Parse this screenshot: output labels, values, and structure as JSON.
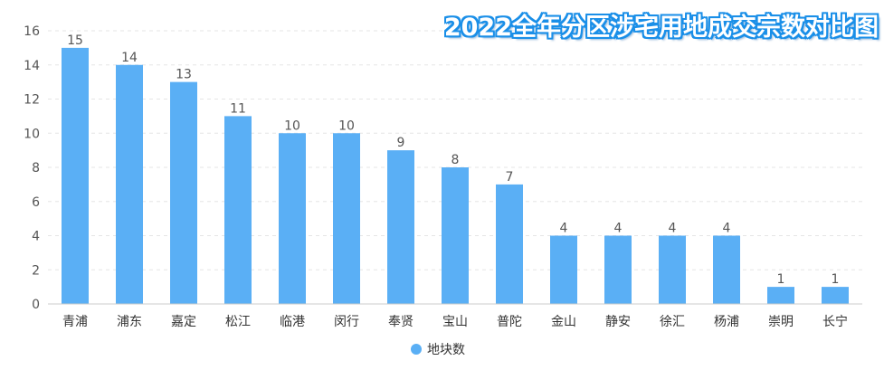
{
  "chart_data": {
    "type": "bar",
    "title": "2022全年分区涉宅用地成交宗数对比图",
    "categories": [
      "青浦",
      "浦东",
      "嘉定",
      "松江",
      "临港",
      "闵行",
      "奉贤",
      "宝山",
      "普陀",
      "金山",
      "静安",
      "徐汇",
      "杨浦",
      "崇明",
      "长宁"
    ],
    "series": [
      {
        "name": "地块数",
        "values": [
          15,
          14,
          13,
          11,
          10,
          10,
          9,
          8,
          7,
          4,
          4,
          4,
          4,
          1,
          1
        ]
      }
    ],
    "ylim": [
      0,
      16
    ],
    "yticks": [
      0,
      2,
      4,
      6,
      8,
      10,
      12,
      14,
      16
    ],
    "data_labels": true,
    "grid": true,
    "legend": "bottom-center",
    "colors": {
      "bar": "#5aaff5",
      "title_outline": "#1a8fe8",
      "axis_text": "#555555",
      "grid": "#e6e6e6"
    }
  }
}
